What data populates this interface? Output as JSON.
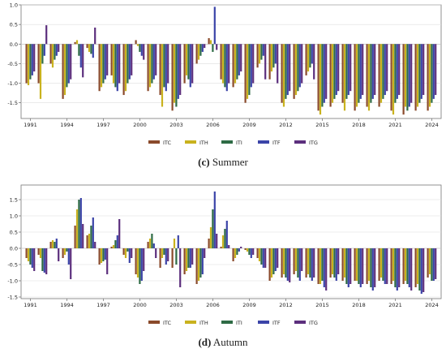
{
  "colors": {
    "ITC": "#8a4a2b",
    "ITH": "#c9b21e",
    "ITI": "#2e6b45",
    "ITF": "#3b44a8",
    "ITG": "#5c2f7d"
  },
  "captions": {
    "summer_letter": "(c)",
    "summer_label": "Summer",
    "autumn_letter": "(d)",
    "autumn_label": "Autumn"
  },
  "chart_data": [
    {
      "type": "bar",
      "panel": "Summer",
      "legend_position": "bottom",
      "grid": true,
      "ylim": [
        -1.9,
        1.0
      ],
      "yticks": [
        -1.5,
        -1.0,
        -0.5,
        0.0,
        0.5,
        1.0
      ],
      "ytick_labels": [
        "-1.5",
        "-1.0",
        "-0.5",
        "0.0",
        "0.5",
        "1.0"
      ],
      "xticks": [
        "1991",
        "1994",
        "1997",
        "2000",
        "2003",
        "2006",
        "2009",
        "2012",
        "2015",
        "2018",
        "2021",
        "2024"
      ],
      "categories": [
        "1991",
        "1992",
        "1993",
        "1994",
        "1995",
        "1996",
        "1997",
        "1998",
        "1999",
        "2000",
        "2001",
        "2002",
        "2003",
        "2004",
        "2005",
        "2006",
        "2007",
        "2008",
        "2009",
        "2010",
        "2011",
        "2012",
        "2013",
        "2014",
        "2015",
        "2016",
        "2017",
        "2018",
        "2019",
        "2020",
        "2021",
        "2022",
        "2023",
        "2024"
      ],
      "series": [
        {
          "name": "ITC",
          "values": [
            -1.0,
            -1.0,
            -0.5,
            -1.4,
            0.05,
            -0.1,
            -1.2,
            -0.8,
            -1.3,
            0.1,
            -1.2,
            -1.3,
            -1.7,
            -1.0,
            -0.5,
            0.15,
            -0.9,
            -1.1,
            -1.5,
            -0.6,
            -0.9,
            -1.5,
            -1.4,
            -0.8,
            -1.7,
            -1.6,
            -1.5,
            -1.7,
            -1.6,
            -1.6,
            -1.7,
            -1.8,
            -1.7,
            -1.7
          ]
        },
        {
          "name": "ITH",
          "values": [
            -1.05,
            -1.4,
            -0.6,
            -1.3,
            0.1,
            -0.2,
            -1.1,
            -1.0,
            -1.2,
            -0.05,
            -1.1,
            -1.6,
            -1.5,
            -0.8,
            -0.4,
            0.1,
            -1.0,
            -1.0,
            -1.4,
            -0.5,
            -0.7,
            -1.6,
            -1.3,
            -0.7,
            -1.8,
            -1.5,
            -1.7,
            -1.6,
            -1.7,
            -1.5,
            -1.8,
            -1.6,
            -1.6,
            -1.6
          ]
        },
        {
          "name": "ITI",
          "values": [
            -0.9,
            -0.5,
            -0.4,
            -1.1,
            -0.3,
            -0.25,
            -1.0,
            -1.1,
            -1.0,
            -0.2,
            -1.0,
            -1.1,
            -1.6,
            -0.9,
            -0.3,
            -0.2,
            -1.1,
            -0.9,
            -1.3,
            -0.4,
            -0.6,
            -1.4,
            -1.2,
            -0.6,
            -1.6,
            -1.4,
            -1.4,
            -1.5,
            -1.5,
            -1.4,
            -1.5,
            -1.7,
            -1.5,
            -1.5
          ]
        },
        {
          "name": "ITF",
          "values": [
            -0.8,
            -0.3,
            -0.3,
            -1.0,
            -0.6,
            -0.35,
            -0.9,
            -1.2,
            -0.9,
            -0.3,
            -0.9,
            -1.2,
            -1.4,
            -1.1,
            -0.2,
            0.95,
            -1.2,
            -0.8,
            -1.1,
            -0.3,
            -0.5,
            -1.3,
            -1.1,
            -0.5,
            -1.5,
            -1.3,
            -1.3,
            -1.4,
            -1.4,
            -1.3,
            -1.4,
            -1.6,
            -1.4,
            -1.4
          ]
        },
        {
          "name": "ITG",
          "values": [
            -0.7,
            0.48,
            -0.2,
            -0.9,
            -0.85,
            0.42,
            -0.8,
            -1.0,
            -0.8,
            -0.4,
            -0.8,
            -1.0,
            -1.3,
            -1.0,
            -0.1,
            -0.15,
            -1.0,
            -0.7,
            -1.0,
            -0.9,
            -1.0,
            -1.2,
            -1.0,
            -0.9,
            -1.4,
            -1.2,
            -1.2,
            -1.3,
            -1.3,
            -1.2,
            -1.3,
            -1.5,
            -1.3,
            -1.3
          ]
        }
      ]
    },
    {
      "type": "bar",
      "panel": "Autumn",
      "legend_position": "bottom",
      "grid": true,
      "ylim": [
        -1.55,
        1.95
      ],
      "yticks": [
        -1.5,
        -1.0,
        -0.5,
        0.0,
        0.5,
        1.0,
        1.5
      ],
      "ytick_labels": [
        "-1.5",
        "-1.0",
        "-0.5",
        "0.0",
        "0.5",
        "1.0",
        "1.5"
      ],
      "xticks": [
        "1991",
        "1994",
        "1997",
        "2000",
        "2003",
        "2006",
        "2009",
        "2012",
        "2015",
        "2018",
        "2021",
        "2024"
      ],
      "categories": [
        "1991",
        "1992",
        "1993",
        "1994",
        "1995",
        "1996",
        "1997",
        "1998",
        "1999",
        "2000",
        "2001",
        "2002",
        "2003",
        "2004",
        "2005",
        "2006",
        "2007",
        "2008",
        "2009",
        "2010",
        "2011",
        "2012",
        "2013",
        "2014",
        "2015",
        "2016",
        "2017",
        "2018",
        "2019",
        "2020",
        "2021",
        "2022",
        "2023",
        "2024"
      ],
      "series": [
        {
          "name": "ITC",
          "values": [
            -0.3,
            -0.2,
            0.2,
            -0.3,
            0.7,
            0.4,
            -0.5,
            0.05,
            -0.2,
            -0.8,
            0.2,
            -0.6,
            -0.6,
            -0.8,
            -1.1,
            0.3,
            0.05,
            -0.4,
            -0.05,
            -0.3,
            -1.0,
            -0.9,
            -0.8,
            -0.9,
            -1.1,
            -0.9,
            -1.0,
            -1.0,
            -1.1,
            -1.0,
            -1.1,
            -1.1,
            -1.2,
            -0.9
          ]
        },
        {
          "name": "ITH",
          "values": [
            -0.4,
            -0.3,
            0.25,
            -0.2,
            1.2,
            0.45,
            -0.45,
            0.1,
            -0.3,
            -0.9,
            0.3,
            -0.3,
            0.3,
            -0.7,
            -1.0,
            0.65,
            0.4,
            -0.3,
            -0.1,
            -0.4,
            -0.9,
            -0.8,
            -0.7,
            -0.8,
            -1.1,
            -0.8,
            -0.9,
            -1.0,
            -1.0,
            -0.9,
            -1.0,
            -1.0,
            -1.1,
            -0.8
          ]
        },
        {
          "name": "ITI",
          "values": [
            -0.5,
            -0.7,
            0.2,
            -0.1,
            1.5,
            0.7,
            -0.4,
            0.25,
            -0.1,
            -1.1,
            0.45,
            -0.2,
            -0.5,
            -0.6,
            -0.9,
            1.2,
            0.6,
            -0.2,
            -0.2,
            -0.5,
            -0.8,
            -0.9,
            -0.9,
            -0.9,
            -1.0,
            -0.9,
            -1.1,
            -1.1,
            -1.2,
            -1.0,
            -1.2,
            -1.1,
            -1.3,
            -1.0
          ]
        },
        {
          "name": "ITF",
          "values": [
            -0.6,
            -0.75,
            0.3,
            -0.5,
            1.55,
            0.95,
            -0.35,
            0.4,
            -0.45,
            -1.0,
            0.15,
            -0.5,
            0.4,
            -0.6,
            -0.8,
            1.75,
            0.85,
            -0.1,
            -0.3,
            -0.6,
            -0.7,
            -1.0,
            -1.0,
            -1.0,
            -1.2,
            -1.0,
            -1.2,
            -1.2,
            -1.3,
            -1.1,
            -1.3,
            -1.2,
            -1.4,
            -1.0
          ]
        },
        {
          "name": "ITG",
          "values": [
            -0.7,
            -0.8,
            -0.4,
            -0.95,
            0.75,
            0.2,
            -0.8,
            0.9,
            -0.3,
            -0.7,
            -0.3,
            -0.4,
            -1.2,
            -0.5,
            -0.3,
            0.45,
            0.1,
            0.05,
            -0.2,
            -0.6,
            -0.6,
            -1.05,
            -0.7,
            -0.9,
            -1.3,
            -0.8,
            -1.1,
            -1.1,
            -1.2,
            -1.1,
            -1.2,
            -1.3,
            -1.35,
            -0.95
          ]
        }
      ]
    }
  ]
}
